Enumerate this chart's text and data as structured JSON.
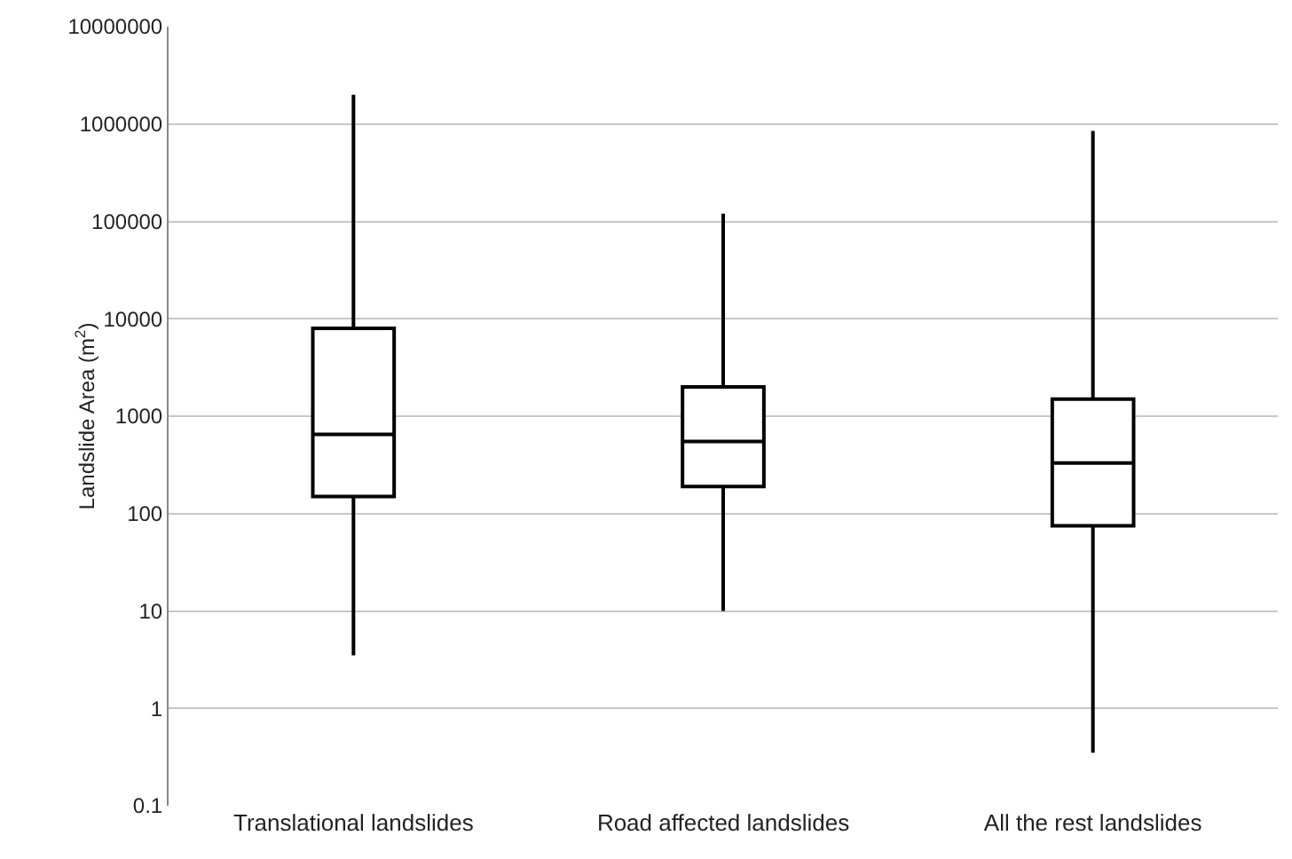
{
  "chart_data": {
    "type": "box",
    "ylabel": "Landslide Area (m$^{2}$)",
    "categories": [
      "Translational landslides",
      "Road affected landslides",
      "All the rest landslides"
    ],
    "boxes": [
      {
        "low": 3.5,
        "q1": 150,
        "median": 650,
        "q3": 8000,
        "high": 2000000
      },
      {
        "low": 10,
        "q1": 190,
        "median": 550,
        "q3": 2000,
        "high": 120000
      },
      {
        "low": 0.35,
        "q1": 75,
        "median": 330,
        "q3": 1500,
        "high": 850000
      }
    ],
    "color": "#000000",
    "log": true,
    "ylim": [
      0.1,
      10000000
    ],
    "yticks": [
      0.1,
      1,
      10,
      100,
      1000,
      10000,
      100000,
      1000000,
      10000000
    ],
    "grid": "y"
  }
}
